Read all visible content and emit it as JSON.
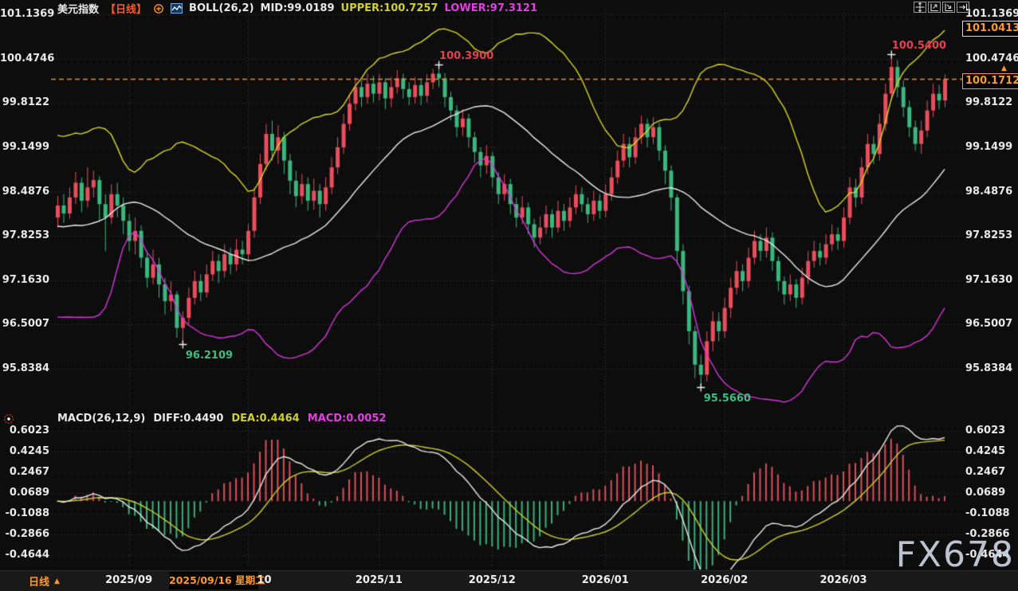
{
  "header": {
    "symbol": "美元指数",
    "period_tag": "【日线】",
    "boll": "BOLL(26,2)",
    "mid": "MID:99.0189",
    "upper": "UPPER:100.7257",
    "lower": "LOWER:97.3121"
  },
  "toolbar": {
    "icons": [
      "pan-crosshair-icon",
      "scale-left-axis-icon",
      "scale-right-axis-icon",
      "goto-latest-icon"
    ]
  },
  "price_axis": {
    "ticks": [
      "101.1369",
      "100.4746",
      "99.8122",
      "99.1499",
      "98.4876",
      "97.8253",
      "97.1630",
      "96.5007",
      "95.8384"
    ]
  },
  "price_markers": {
    "session_high": "101.0413",
    "last_price": "100.1712",
    "last_price_value": 100.1712,
    "arrow": "▲"
  },
  "macd_panel": {
    "title": "MACD(26,12,9)",
    "diff": "DIFF:0.4490",
    "dea": "DEA:0.4464",
    "macd": "MACD:0.0052",
    "ticks": [
      "0.6023",
      "0.4245",
      "0.2467",
      "0.0689",
      "-0.1088",
      "-0.2866",
      "-0.4644"
    ]
  },
  "bottom_bar": {
    "period": "日线",
    "period_arrow": "▲",
    "hover_date": "2025/09/16 星期二",
    "months": [
      {
        "label": "2025/09",
        "index": 12
      },
      {
        "label": "2025/10",
        "index": 32
      },
      {
        "label": "2025/11",
        "index": 54
      },
      {
        "label": "2025/12",
        "index": 73
      },
      {
        "label": "2026/01",
        "index": 92
      },
      {
        "label": "2026/02",
        "index": 112
      },
      {
        "label": "2026/03",
        "index": 132
      }
    ]
  },
  "watermark": "FX678",
  "annotations": [
    {
      "text": "100.3900",
      "index": 64,
      "price": 100.39,
      "placement": "above",
      "color": "#e5404e"
    },
    {
      "text": "100.5400",
      "index": 140,
      "price": 100.54,
      "placement": "above",
      "color": "#e5404e"
    },
    {
      "text": "96.2109",
      "index": 21,
      "price": 96.2109,
      "placement": "below",
      "color": "#3dbd82"
    },
    {
      "text": "95.5660",
      "index": 108,
      "price": 95.566,
      "placement": "below",
      "color": "#3dbd82"
    }
  ],
  "colors": {
    "background": "#0d0d0e",
    "grid": "#3f3f3f",
    "up": "#e84e5c",
    "down": "#3bb77d",
    "boll_mid": "#e9e9e9",
    "boll_upper": "#d7d722",
    "boll_lower": "#d935d9",
    "macd_diff": "#e9e9e9",
    "macd_dea": "#cfd02a",
    "hist_up": "#d94f59",
    "hist_down": "#3aae79",
    "accent_orange": "#f08c21"
  },
  "chart_data": {
    "type": "candlestick",
    "title": "美元指数 日线 (USD Index, daily) with BOLL(26,2) and MACD(26,12,9)",
    "price_axis_range": [
      95.8384,
      101.1369
    ],
    "macd_axis_range": [
      -0.4644,
      0.6023
    ],
    "boll": {
      "period": 26,
      "mult": 2
    },
    "macd": {
      "slow": 26,
      "fast": 12,
      "signal": 9
    },
    "candles": [
      [
        98.1,
        98.42,
        97.95,
        98.28
      ],
      [
        98.28,
        98.45,
        98.02,
        98.16
      ],
      [
        98.16,
        98.55,
        98.08,
        98.4
      ],
      [
        98.4,
        98.78,
        98.3,
        98.62
      ],
      [
        98.62,
        98.7,
        98.18,
        98.35
      ],
      [
        98.35,
        98.85,
        98.25,
        98.55
      ],
      [
        98.55,
        98.8,
        98.4,
        98.66
      ],
      [
        98.66,
        98.72,
        98.05,
        98.3
      ],
      [
        98.3,
        98.45,
        97.6,
        98.1
      ],
      [
        98.1,
        98.6,
        98.0,
        98.45
      ],
      [
        98.45,
        98.62,
        98.1,
        98.28
      ],
      [
        98.28,
        98.4,
        97.85,
        98.05
      ],
      [
        98.05,
        98.15,
        97.6,
        97.75
      ],
      [
        97.75,
        98.1,
        97.55,
        97.9
      ],
      [
        97.9,
        97.98,
        97.35,
        97.5
      ],
      [
        97.5,
        97.6,
        97.05,
        97.2
      ],
      [
        97.2,
        97.62,
        97.1,
        97.4
      ],
      [
        97.4,
        97.5,
        96.9,
        97.1
      ],
      [
        97.1,
        97.2,
        96.65,
        96.85
      ],
      [
        96.85,
        97.15,
        96.7,
        96.95
      ],
      [
        96.95,
        97.0,
        96.3,
        96.45
      ],
      [
        96.45,
        96.7,
        96.21,
        96.6
      ],
      [
        96.6,
        97.05,
        96.5,
        96.9
      ],
      [
        96.9,
        97.3,
        96.8,
        97.15
      ],
      [
        97.15,
        97.25,
        96.85,
        96.98
      ],
      [
        96.98,
        97.4,
        96.9,
        97.25
      ],
      [
        97.25,
        97.6,
        97.15,
        97.45
      ],
      [
        97.45,
        97.55,
        97.12,
        97.3
      ],
      [
        97.3,
        97.7,
        97.2,
        97.55
      ],
      [
        97.55,
        97.65,
        97.25,
        97.4
      ],
      [
        97.4,
        97.78,
        97.3,
        97.62
      ],
      [
        97.62,
        97.75,
        97.4,
        97.55
      ],
      [
        97.55,
        98.0,
        97.45,
        97.9
      ],
      [
        97.9,
        98.55,
        97.8,
        98.4
      ],
      [
        98.4,
        99.05,
        98.3,
        98.9
      ],
      [
        98.9,
        99.5,
        98.8,
        99.35
      ],
      [
        99.35,
        99.55,
        98.95,
        99.1
      ],
      [
        99.1,
        99.48,
        98.9,
        99.3
      ],
      [
        99.3,
        99.38,
        98.75,
        98.95
      ],
      [
        98.95,
        99.05,
        98.45,
        98.65
      ],
      [
        98.65,
        98.8,
        98.25,
        98.42
      ],
      [
        98.42,
        98.75,
        98.3,
        98.6
      ],
      [
        98.6,
        98.7,
        98.2,
        98.35
      ],
      [
        98.35,
        98.68,
        98.22,
        98.5
      ],
      [
        98.5,
        98.6,
        98.1,
        98.3
      ],
      [
        98.3,
        98.7,
        98.2,
        98.55
      ],
      [
        98.55,
        99.0,
        98.45,
        98.85
      ],
      [
        98.85,
        99.3,
        98.75,
        99.15
      ],
      [
        99.15,
        99.65,
        99.05,
        99.5
      ],
      [
        99.5,
        99.95,
        99.4,
        99.8
      ],
      [
        99.8,
        100.2,
        99.7,
        100.05
      ],
      [
        100.05,
        100.15,
        99.75,
        99.9
      ],
      [
        99.9,
        100.25,
        99.8,
        100.1
      ],
      [
        100.1,
        100.22,
        99.82,
        99.95
      ],
      [
        99.95,
        100.24,
        99.85,
        100.12
      ],
      [
        100.12,
        100.18,
        99.72,
        99.88
      ],
      [
        99.88,
        100.2,
        99.75,
        100.05
      ],
      [
        100.05,
        100.3,
        99.95,
        100.18
      ],
      [
        100.18,
        100.25,
        99.88,
        100.02
      ],
      [
        100.02,
        100.12,
        99.78,
        99.9
      ],
      [
        99.9,
        100.2,
        99.8,
        100.08
      ],
      [
        100.08,
        100.15,
        99.78,
        99.92
      ],
      [
        99.92,
        100.24,
        99.82,
        100.12
      ],
      [
        100.12,
        100.32,
        100.02,
        100.25
      ],
      [
        100.25,
        100.39,
        100.05,
        100.18
      ],
      [
        100.18,
        100.26,
        99.75,
        99.9
      ],
      [
        99.9,
        99.98,
        99.55,
        99.7
      ],
      [
        99.7,
        99.78,
        99.3,
        99.45
      ],
      [
        99.45,
        99.72,
        99.32,
        99.58
      ],
      [
        99.58,
        99.65,
        99.15,
        99.3
      ],
      [
        99.3,
        99.38,
        98.92,
        99.08
      ],
      [
        99.08,
        99.15,
        98.7,
        98.88
      ],
      [
        98.88,
        99.18,
        98.75,
        99.02
      ],
      [
        99.02,
        99.08,
        98.55,
        98.7
      ],
      [
        98.7,
        98.78,
        98.3,
        98.45
      ],
      [
        98.45,
        98.75,
        98.35,
        98.6
      ],
      [
        98.6,
        98.68,
        98.15,
        98.3
      ],
      [
        98.3,
        98.4,
        97.95,
        98.1
      ],
      [
        98.1,
        98.42,
        98.0,
        98.25
      ],
      [
        98.25,
        98.32,
        97.85,
        98.0
      ],
      [
        98.0,
        98.08,
        97.65,
        97.8
      ],
      [
        97.8,
        98.12,
        97.7,
        97.95
      ],
      [
        97.95,
        98.28,
        97.85,
        98.15
      ],
      [
        98.15,
        98.22,
        97.8,
        97.95
      ],
      [
        97.95,
        98.35,
        97.88,
        98.2
      ],
      [
        98.2,
        98.3,
        97.9,
        98.05
      ],
      [
        98.05,
        98.4,
        97.95,
        98.25
      ],
      [
        98.25,
        98.58,
        98.15,
        98.45
      ],
      [
        98.45,
        98.55,
        98.18,
        98.3
      ],
      [
        98.3,
        98.4,
        98.02,
        98.15
      ],
      [
        98.15,
        98.5,
        98.05,
        98.35
      ],
      [
        98.35,
        98.45,
        98.08,
        98.2
      ],
      [
        98.2,
        98.6,
        98.1,
        98.45
      ],
      [
        98.45,
        98.85,
        98.35,
        98.7
      ],
      [
        98.7,
        99.1,
        98.6,
        98.95
      ],
      [
        98.95,
        99.35,
        98.85,
        99.2
      ],
      [
        99.2,
        99.3,
        98.85,
        99.0
      ],
      [
        99.0,
        99.45,
        98.9,
        99.3
      ],
      [
        99.3,
        99.62,
        99.2,
        99.5
      ],
      [
        99.5,
        99.58,
        99.15,
        99.3
      ],
      [
        99.3,
        99.6,
        99.2,
        99.45
      ],
      [
        99.45,
        99.52,
        98.95,
        99.1
      ],
      [
        99.1,
        99.18,
        98.6,
        98.8
      ],
      [
        98.8,
        98.88,
        98.2,
        98.4
      ],
      [
        98.4,
        98.45,
        97.4,
        97.6
      ],
      [
        97.6,
        97.7,
        96.8,
        97.0
      ],
      [
        97.0,
        97.08,
        96.2,
        96.4
      ],
      [
        96.4,
        96.48,
        95.7,
        95.9
      ],
      [
        95.9,
        96.05,
        95.57,
        95.75
      ],
      [
        95.75,
        96.4,
        95.65,
        96.25
      ],
      [
        96.25,
        96.7,
        96.1,
        96.55
      ],
      [
        96.55,
        96.68,
        96.25,
        96.4
      ],
      [
        96.4,
        96.9,
        96.3,
        96.75
      ],
      [
        96.75,
        97.2,
        96.6,
        97.05
      ],
      [
        97.05,
        97.45,
        96.95,
        97.3
      ],
      [
        97.3,
        97.4,
        97.0,
        97.15
      ],
      [
        97.15,
        97.65,
        97.05,
        97.5
      ],
      [
        97.5,
        97.9,
        97.4,
        97.75
      ],
      [
        97.75,
        97.85,
        97.45,
        97.6
      ],
      [
        97.6,
        97.95,
        97.5,
        97.8
      ],
      [
        97.8,
        97.88,
        97.3,
        97.45
      ],
      [
        97.45,
        97.52,
        97.0,
        97.15
      ],
      [
        97.15,
        97.22,
        96.8,
        96.95
      ],
      [
        96.95,
        97.25,
        96.85,
        97.1
      ],
      [
        97.1,
        97.18,
        96.75,
        96.9
      ],
      [
        96.9,
        97.35,
        96.8,
        97.2
      ],
      [
        97.2,
        97.6,
        97.1,
        97.45
      ],
      [
        97.45,
        97.75,
        97.35,
        97.6
      ],
      [
        97.6,
        97.72,
        97.38,
        97.5
      ],
      [
        97.5,
        97.85,
        97.4,
        97.7
      ],
      [
        97.7,
        98.0,
        97.6,
        97.85
      ],
      [
        97.85,
        97.95,
        97.62,
        97.75
      ],
      [
        97.75,
        98.25,
        97.65,
        98.1
      ],
      [
        98.1,
        98.7,
        98.0,
        98.55
      ],
      [
        98.55,
        98.68,
        98.25,
        98.4
      ],
      [
        98.4,
        99.0,
        98.3,
        98.85
      ],
      [
        98.85,
        99.35,
        98.75,
        99.2
      ],
      [
        99.2,
        99.32,
        98.9,
        99.05
      ],
      [
        99.05,
        99.65,
        98.95,
        99.5
      ],
      [
        99.5,
        100.1,
        99.4,
        99.95
      ],
      [
        99.95,
        100.54,
        99.85,
        100.35
      ],
      [
        100.35,
        100.45,
        99.9,
        100.05
      ],
      [
        100.05,
        100.15,
        99.6,
        99.75
      ],
      [
        99.75,
        99.85,
        99.3,
        99.45
      ],
      [
        99.45,
        99.55,
        99.1,
        99.2
      ],
      [
        99.2,
        99.55,
        99.05,
        99.4
      ],
      [
        99.4,
        99.85,
        99.3,
        99.7
      ],
      [
        99.7,
        100.1,
        99.6,
        99.95
      ],
      [
        99.95,
        100.08,
        99.72,
        99.85
      ],
      [
        99.85,
        100.24,
        99.75,
        100.17
      ]
    ],
    "warmup_closes": [
      98.2,
      98.4,
      98.1,
      98.3,
      98.5,
      98.2,
      98.0,
      97.6,
      97.0,
      96.5,
      96.3,
      96.6,
      97.1,
      97.6,
      98.0,
      98.3,
      98.5,
      98.4,
      98.6,
      98.5,
      98.3,
      98.45,
      98.55,
      98.35,
      98.5,
      98.3
    ]
  }
}
